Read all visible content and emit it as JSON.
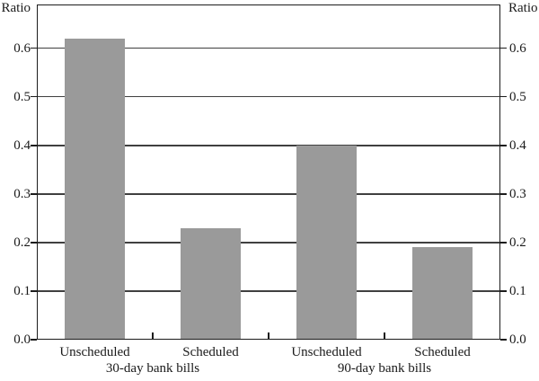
{
  "chart_data": {
    "type": "bar",
    "title": "",
    "ylabel": "Ratio",
    "ylabel_right": "Ratio",
    "ylim": [
      0,
      0.69
    ],
    "yticks": [
      "0.0",
      "0.1",
      "0.2",
      "0.3",
      "0.4",
      "0.5",
      "0.6"
    ],
    "grid": true,
    "legend": "none",
    "categories": [
      "Unscheduled",
      "Scheduled",
      "Unscheduled",
      "Scheduled"
    ],
    "values": [
      0.62,
      0.23,
      0.4,
      0.19
    ],
    "groups": [
      {
        "label": "30-day bank bills",
        "bars": [
          {
            "category": "Unscheduled",
            "value": 0.62
          },
          {
            "category": "Scheduled",
            "value": 0.23
          }
        ]
      },
      {
        "label": "90-day bank bills",
        "bars": [
          {
            "category": "Unscheduled",
            "value": 0.4
          },
          {
            "category": "Scheduled",
            "value": 0.19
          }
        ]
      }
    ],
    "colors": {
      "bar": "#9a9a9a",
      "axis": "#1c1c1c",
      "grid": "#404040",
      "text": "#1a1a1a",
      "background": "#ffffff"
    }
  }
}
